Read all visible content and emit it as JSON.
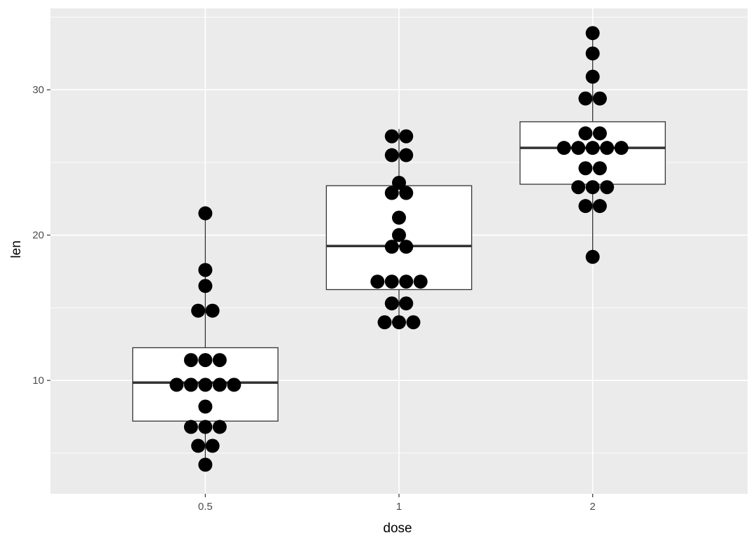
{
  "chart_data": {
    "type": "boxplot-dotplot",
    "xlabel": "dose",
    "ylabel": "len",
    "categories": [
      "0.5",
      "1",
      "2"
    ],
    "ylim": [
      2.2,
      35.6
    ],
    "y_ticks": [
      10,
      20,
      30
    ],
    "y_tick_labels": [
      "10",
      "20",
      "30"
    ],
    "grid": true,
    "boxes": [
      {
        "category": "0.5",
        "lower_whisker": 4.2,
        "q1": 7.2,
        "median": 9.85,
        "q3": 12.25,
        "upper_whisker": 21.5
      },
      {
        "category": "1",
        "lower_whisker": 13.6,
        "q1": 16.25,
        "median": 19.25,
        "q3": 23.4,
        "upper_whisker": 27.3
      },
      {
        "category": "2",
        "lower_whisker": 18.5,
        "q1": 23.5,
        "median": 26.0,
        "q3": 27.8,
        "upper_whisker": 33.9
      }
    ],
    "series": [
      {
        "category": "0.5",
        "values": [
          21.5,
          17.6,
          16.5,
          14.8,
          14.8,
          11.4,
          11.4,
          11.4,
          9.7,
          9.7,
          9.7,
          9.7,
          9.7,
          8.2,
          6.8,
          6.8,
          6.8,
          5.5,
          5.5,
          4.2
        ]
      },
      {
        "category": "1",
        "values": [
          26.8,
          26.8,
          25.5,
          25.5,
          23.6,
          22.9,
          22.9,
          21.2,
          20.0,
          19.2,
          19.2,
          16.8,
          16.8,
          16.8,
          16.8,
          15.3,
          15.3,
          14.0,
          14.0,
          14.0
        ]
      },
      {
        "category": "2",
        "values": [
          33.9,
          32.5,
          30.9,
          29.4,
          29.4,
          27.0,
          27.0,
          26.0,
          26.0,
          26.0,
          26.0,
          26.0,
          24.6,
          24.6,
          23.3,
          23.3,
          23.3,
          22.0,
          22.0,
          18.5
        ]
      }
    ],
    "colors": {
      "panel": "#ebebeb",
      "grid_major": "#ffffff",
      "box_fill": "#ffffff",
      "box_line": "#333333",
      "median": "#333333",
      "dot": "#000000"
    }
  }
}
